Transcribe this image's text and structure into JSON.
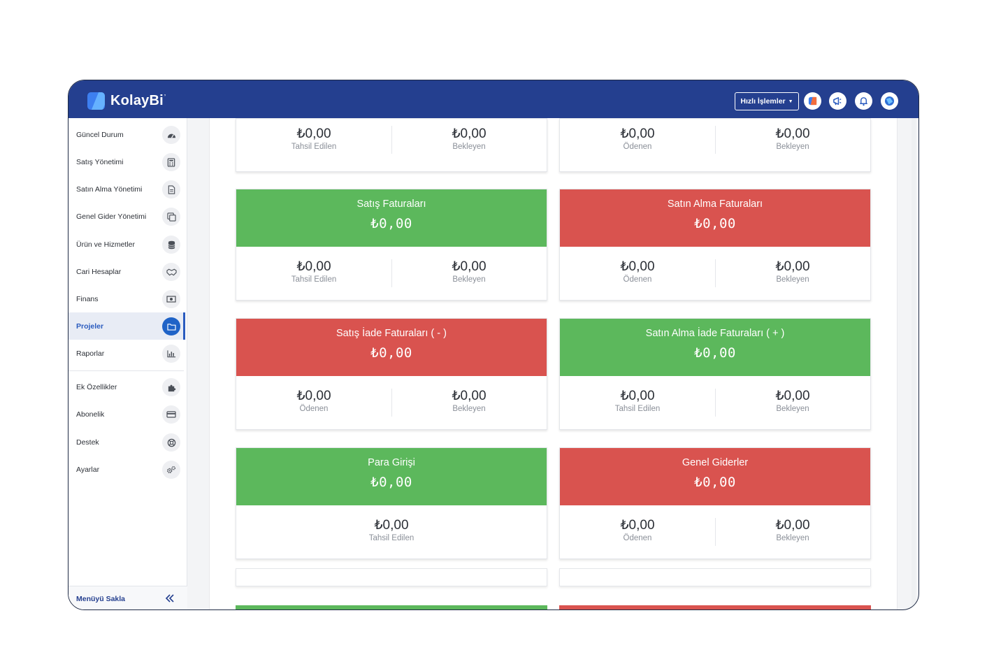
{
  "app": {
    "logo_text": "KolayBi",
    "logo_mark": "’",
    "quick_actions_label": "Hızlı İşlemler"
  },
  "topbar_icons": [
    {
      "name": "kolaybi-app-icon"
    },
    {
      "name": "megaphone-icon"
    },
    {
      "name": "bell-icon"
    },
    {
      "name": "user-avatar-icon"
    }
  ],
  "sidebar": {
    "items": [
      {
        "label": "Güncel Durum",
        "icon": "dashboard-gauge-icon"
      },
      {
        "label": "Satış Yönetimi",
        "icon": "calculator-icon"
      },
      {
        "label": "Satın Alma Yönetimi",
        "icon": "document-icon"
      },
      {
        "label": "Genel Gider Yönetimi",
        "icon": "copy-icon"
      },
      {
        "label": "Ürün ve Hizmetler",
        "icon": "database-icon"
      },
      {
        "label": "Cari Hesaplar",
        "icon": "handshake-icon"
      },
      {
        "label": "Finans",
        "icon": "money-icon"
      },
      {
        "label": "Projeler",
        "icon": "folder-icon",
        "active": true
      },
      {
        "label": "Raporlar",
        "icon": "bar-chart-icon"
      },
      {
        "label": "Ek Özellikler",
        "icon": "puzzle-icon"
      },
      {
        "label": "Abonelik",
        "icon": "credit-card-icon"
      },
      {
        "label": "Destek",
        "icon": "lifebuoy-icon"
      },
      {
        "label": "Ayarlar",
        "icon": "gears-icon"
      }
    ],
    "footer_label": "Menüyü Sakla"
  },
  "cards": {
    "top_left": {
      "left_value": "₺0,00",
      "left_label": "Tahsil Edilen",
      "right_value": "₺0,00",
      "right_label": "Bekleyen"
    },
    "top_right": {
      "left_value": "₺0,00",
      "left_label": "Ödenen",
      "right_value": "₺0,00",
      "right_label": "Bekleyen"
    },
    "sales_invoices": {
      "title": "Satış Faturaları",
      "total": "₺0,00",
      "left_value": "₺0,00",
      "left_label": "Tahsil Edilen",
      "right_value": "₺0,00",
      "right_label": "Bekleyen",
      "color": "#5cb85c"
    },
    "purchase_invoices": {
      "title": "Satın Alma Faturaları",
      "total": "₺0,00",
      "left_value": "₺0,00",
      "left_label": "Ödenen",
      "right_value": "₺0,00",
      "right_label": "Bekleyen",
      "color": "#d9534f"
    },
    "sales_returns": {
      "title": "Satış İade Faturaları ( - )",
      "total": "₺0,00",
      "left_value": "₺0,00",
      "left_label": "Ödenen",
      "right_value": "₺0,00",
      "right_label": "Bekleyen",
      "color": "#d9534f"
    },
    "purchase_returns": {
      "title": "Satın Alma İade Faturaları ( + )",
      "total": "₺0,00",
      "left_value": "₺0,00",
      "left_label": "Tahsil Edilen",
      "right_value": "₺0,00",
      "right_label": "Bekleyen",
      "color": "#5cb85c"
    },
    "cash_in": {
      "title": "Para Girişi",
      "total": "₺0,00",
      "value": "₺0,00",
      "label": "Tahsil Edilen",
      "color": "#5cb85c"
    },
    "general_expenses": {
      "title": "Genel Giderler",
      "total": "₺0,00",
      "left_value": "₺0,00",
      "left_label": "Ödenen",
      "right_value": "₺0,00",
      "right_label": "Bekleyen",
      "color": "#d9534f"
    }
  },
  "colors": {
    "brand": "#243f8f",
    "accent": "#1f63c7",
    "positive": "#5cb85c",
    "negative": "#d9534f"
  }
}
